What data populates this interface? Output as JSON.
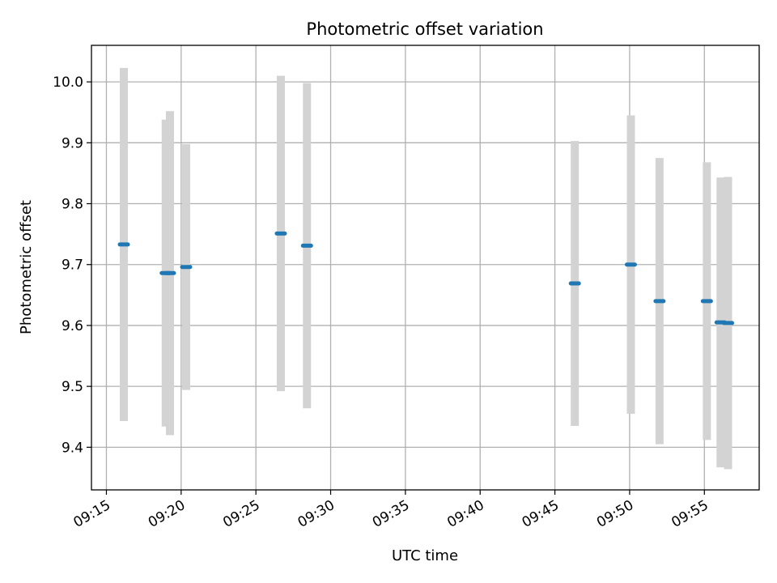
{
  "chart_data": {
    "type": "scatter",
    "title": "Photometric offset variation",
    "xlabel": "UTC time",
    "ylabel": "Photometric offset",
    "x_type": "time",
    "xlim": [
      "09:14:00",
      "09:58:40"
    ],
    "ylim": [
      9.33,
      10.06
    ],
    "x_ticks": [
      "09:15",
      "09:20",
      "09:25",
      "09:30",
      "09:35",
      "09:40",
      "09:45",
      "09:50",
      "09:55"
    ],
    "y_ticks": [
      "9.4",
      "9.5",
      "9.6",
      "9.7",
      "9.8",
      "9.9",
      "10.0"
    ],
    "grid": true,
    "colors": {
      "marker": "#1f77b4",
      "errorbar": "#d3d3d3",
      "grid": "#b0b0b0"
    },
    "series": [
      {
        "points": [
          {
            "x": "09:16:10",
            "y": 9.733,
            "yerr": 0.29
          },
          {
            "x": "09:18:58",
            "y": 9.686,
            "yerr": 0.252
          },
          {
            "x": "09:19:15",
            "y": 9.686,
            "yerr": 0.266
          },
          {
            "x": "09:20:20",
            "y": 9.696,
            "yerr": 0.202
          },
          {
            "x": "09:26:40",
            "y": 9.751,
            "yerr": 0.259
          },
          {
            "x": "09:28:25",
            "y": 9.731,
            "yerr": 0.267
          },
          {
            "x": "09:46:20",
            "y": 9.669,
            "yerr": 0.234
          },
          {
            "x": "09:50:05",
            "y": 9.7,
            "yerr": 0.245
          },
          {
            "x": "09:52:00",
            "y": 9.64,
            "yerr": 0.235
          },
          {
            "x": "09:55:10",
            "y": 9.64,
            "yerr": 0.228
          },
          {
            "x": "09:56:05",
            "y": 9.605,
            "yerr": 0.238
          },
          {
            "x": "09:56:35",
            "y": 9.604,
            "yerr": 0.24
          }
        ]
      }
    ]
  }
}
